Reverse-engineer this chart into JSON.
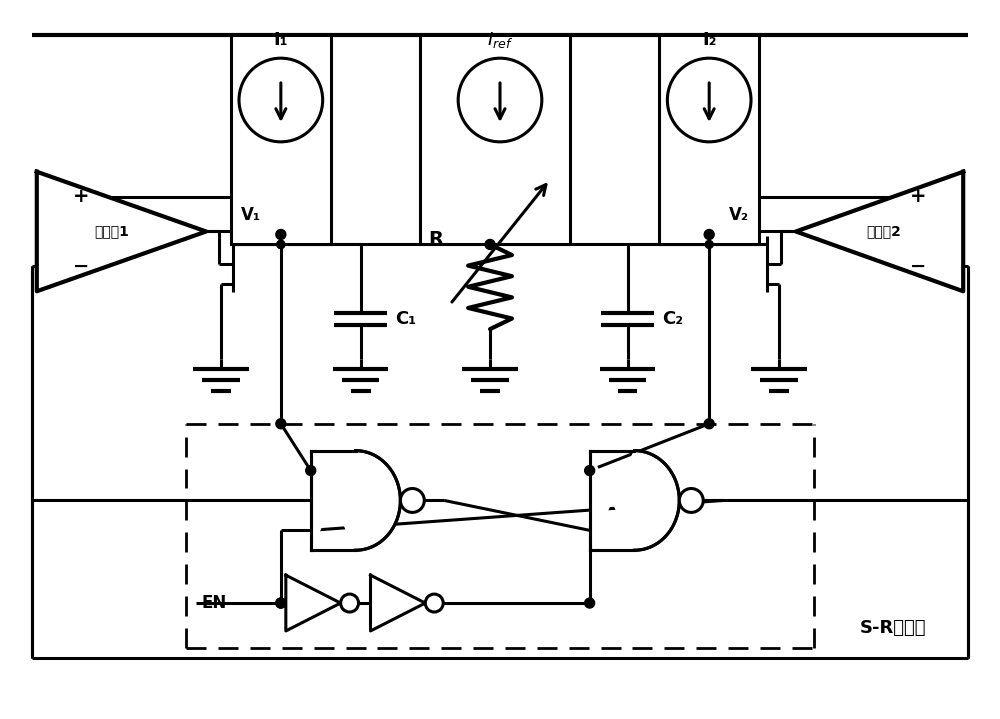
{
  "bg_color": "#ffffff",
  "line_color": "#000000",
  "lw": 2.2,
  "lw_thick": 3.0,
  "lw_dash": 2.0,
  "fig_w": 10.0,
  "fig_h": 7.19,
  "dpi": 100,
  "labels": {
    "comp1": "比较器1",
    "comp2": "比较器2",
    "I1": "I₁",
    "I2": "I₂",
    "Iref": "Iₛᵉᶠ",
    "V1": "V₁",
    "V2": "V₂",
    "C1": "C₁",
    "C2": "C₂",
    "R": "R",
    "EN": "EN",
    "SR": "S-R锁存器",
    "plus": "+",
    "minus": "−"
  }
}
